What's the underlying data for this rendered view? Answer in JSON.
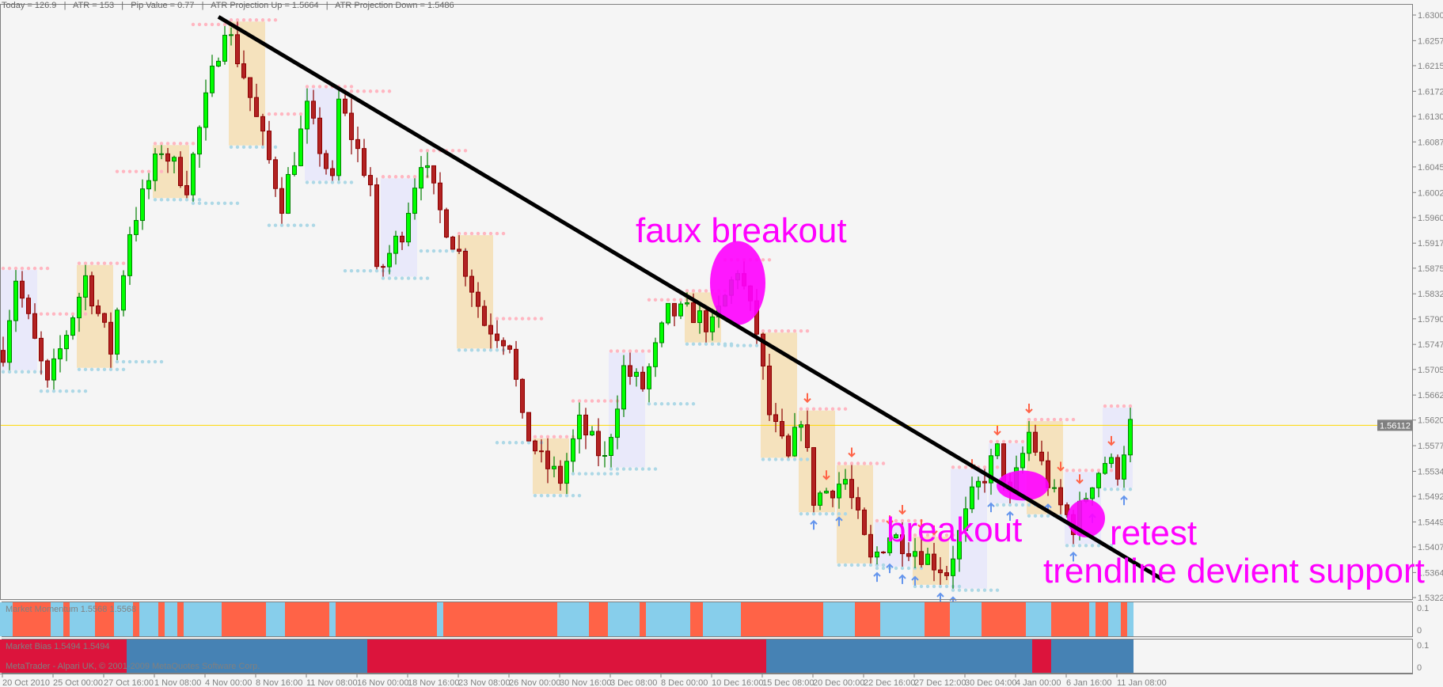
{
  "info_bar": {
    "today": "Today = 126.9",
    "atr": "ATR = 153",
    "pip_value": "Pip Value = 0.77",
    "atr_up": "ATR Projection Up = 1.5664",
    "atr_down": "ATR Projection Down = 1.5486"
  },
  "annotations": {
    "faux_breakout": "faux breakout",
    "breakout": "breakout",
    "retest": "retest",
    "trendline_support": "trendline devient support"
  },
  "chart_data": {
    "type": "candlestick",
    "ylim": [
      1.5322,
      1.63
    ],
    "y_ticks": [
      "1.63000",
      "1.62570",
      "1.62150",
      "1.61720",
      "1.61300",
      "1.60870",
      "1.60450",
      "1.60020",
      "1.59600",
      "1.59170",
      "1.58750",
      "1.58320",
      "1.57900",
      "1.57470",
      "1.57050",
      "1.56620",
      "1.56200",
      "1.55770",
      "1.55340",
      "1.54920",
      "1.54490",
      "1.54070",
      "1.53640",
      "1.53220"
    ],
    "x_ticks": [
      "20 Oct 2010",
      "25 Oct 00:00",
      "27 Oct 16:00",
      "1 Nov 08:00",
      "4 Nov 00:00",
      "8 Nov 16:00",
      "11 Nov 08:00",
      "16 Nov 00:00",
      "18 Nov 16:00",
      "23 Nov 08:00",
      "26 Nov 00:00",
      "30 Nov 16:00",
      "3 Dec 08:00",
      "8 Dec 00:00",
      "10 Dec 16:00",
      "15 Dec 08:00",
      "20 Dec 00:00",
      "22 Dec 16:00",
      "27 Dec 12:00",
      "30 Dec 04:00",
      "4 Jan 00:00",
      "6 Jan 16:00",
      "11 Jan 08:00"
    ],
    "bars_per_tick": 8,
    "bar_count": 179,
    "close_path": [
      [
        0,
        1.5737
      ],
      [
        2,
        1.586
      ],
      [
        7,
        1.5675
      ],
      [
        13,
        1.586
      ],
      [
        17,
        1.5737
      ],
      [
        20,
        1.5938
      ],
      [
        25,
        1.6077
      ],
      [
        29,
        1.6015
      ],
      [
        32,
        1.6154
      ],
      [
        35,
        1.6286
      ],
      [
        38,
        1.62
      ],
      [
        40,
        1.6124
      ],
      [
        44,
        1.5985
      ],
      [
        48,
        1.614
      ],
      [
        52,
        1.6015
      ],
      [
        53,
        1.6154
      ],
      [
        58,
        1.6015
      ],
      [
        59,
        1.586
      ],
      [
        63,
        1.5938
      ],
      [
        66,
        1.6061
      ],
      [
        69,
        1.5969
      ],
      [
        73,
        1.5876
      ],
      [
        76,
        1.5783
      ],
      [
        80,
        1.5752
      ],
      [
        82,
        1.5613
      ],
      [
        85,
        1.5551
      ],
      [
        88,
        1.552
      ],
      [
        91,
        1.5613
      ],
      [
        95,
        1.5551
      ],
      [
        98,
        1.5706
      ],
      [
        101,
        1.5675
      ],
      [
        105,
        1.5799
      ],
      [
        109,
        1.5799
      ],
      [
        112,
        1.5775
      ],
      [
        116,
        1.5876
      ],
      [
        119,
        1.5768
      ],
      [
        121,
        1.5629
      ],
      [
        124,
        1.5551
      ],
      [
        126,
        1.5629
      ],
      [
        128,
        1.5489
      ],
      [
        133,
        1.552
      ],
      [
        137,
        1.5381
      ],
      [
        140,
        1.5428
      ],
      [
        145,
        1.5397
      ],
      [
        149,
        1.5366
      ],
      [
        153,
        1.5489
      ],
      [
        157,
        1.5567
      ],
      [
        159,
        1.5489
      ],
      [
        162,
        1.5598
      ],
      [
        166,
        1.5489
      ],
      [
        169,
        1.5443
      ],
      [
        172,
        1.552
      ],
      [
        174,
        1.5551
      ],
      [
        176,
        1.5536
      ],
      [
        178,
        1.5611
      ]
    ],
    "current_price": "1.56112",
    "trendline": [
      [
        34,
        1.6297
      ],
      [
        183,
        1.5353
      ]
    ],
    "highlights": [
      {
        "label": "faux breakout",
        "bar": 116,
        "price": 1.585
      },
      {
        "label": "breakout",
        "bar": 161,
        "price": 1.551
      },
      {
        "label": "retest",
        "bar": 171,
        "price": 1.5455
      }
    ],
    "colors": {
      "bull_body": "#00ff00",
      "bull_edge": "#008000",
      "bear_body": "#b22222",
      "bear_edge": "#8b0000",
      "resistance_dots": "#ffb6c1",
      "support_dots": "#add8e6",
      "zone_a": "#e6e6fa",
      "zone_b": "#f5deb3",
      "trendline": "#000000",
      "highlight": "#ff00ff",
      "price_line": "#ffd700",
      "down_arrow": "#ff6347",
      "up_arrow": "#6495ed"
    }
  },
  "momentum_panel": {
    "label": "Market Momentum 1.5568 1.5568",
    "scale": [
      "0.1",
      "0"
    ],
    "up_color": "#87ceeb",
    "down_color": "#ff6347",
    "segments": [
      [
        0,
        2,
        "up"
      ],
      [
        2,
        8,
        "down"
      ],
      [
        8,
        10,
        "up"
      ],
      [
        10,
        11,
        "down"
      ],
      [
        11,
        15,
        "up"
      ],
      [
        15,
        18,
        "down"
      ],
      [
        18,
        21,
        "up"
      ],
      [
        21,
        22,
        "down"
      ],
      [
        22,
        25,
        "up"
      ],
      [
        25,
        26,
        "down"
      ],
      [
        26,
        28,
        "up"
      ],
      [
        28,
        29,
        "down"
      ],
      [
        29,
        35,
        "up"
      ],
      [
        35,
        42,
        "down"
      ],
      [
        42,
        45,
        "up"
      ],
      [
        45,
        52,
        "down"
      ],
      [
        52,
        53,
        "up"
      ],
      [
        53,
        69,
        "down"
      ],
      [
        69,
        70,
        "up"
      ],
      [
        70,
        88,
        "down"
      ],
      [
        88,
        93,
        "up"
      ],
      [
        93,
        96,
        "down"
      ],
      [
        96,
        101,
        "up"
      ],
      [
        101,
        102,
        "down"
      ],
      [
        102,
        109,
        "up"
      ],
      [
        109,
        111,
        "down"
      ],
      [
        111,
        117,
        "up"
      ],
      [
        117,
        130,
        "down"
      ],
      [
        130,
        135,
        "up"
      ],
      [
        135,
        139,
        "down"
      ],
      [
        139,
        146,
        "up"
      ],
      [
        146,
        150,
        "down"
      ],
      [
        150,
        155,
        "up"
      ],
      [
        155,
        162,
        "down"
      ],
      [
        162,
        166,
        "up"
      ],
      [
        166,
        172,
        "down"
      ],
      [
        172,
        173,
        "up"
      ],
      [
        173,
        175,
        "down"
      ],
      [
        175,
        177,
        "up"
      ],
      [
        177,
        178,
        "down"
      ],
      [
        178,
        179,
        "up"
      ]
    ]
  },
  "bias_panel": {
    "label": "Market Bias 1.5494 1.5494",
    "copyright": "MetaTrader - Alpari UK, © 2001-2009 MetaQuotes Software Corp.",
    "scale": [
      "0.1",
      "0"
    ],
    "up_color": "#4682b4",
    "down_color": "#dc143c",
    "segments": [
      [
        0,
        20,
        "down"
      ],
      [
        20,
        58,
        "up"
      ],
      [
        58,
        121,
        "down"
      ],
      [
        121,
        163,
        "up"
      ],
      [
        163,
        166,
        "down"
      ],
      [
        166,
        172,
        "up"
      ],
      [
        172,
        179,
        "up"
      ]
    ]
  }
}
